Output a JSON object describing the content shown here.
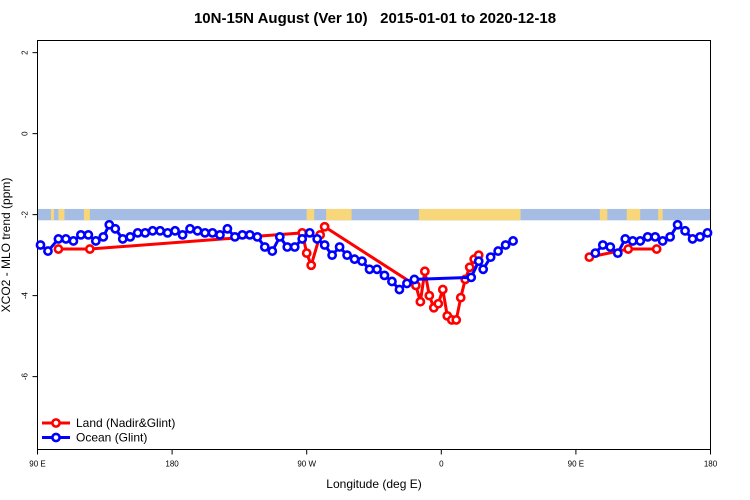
{
  "chart_data": {
    "type": "line",
    "title": "10N-15N August (Ver 10)   2015-01-01 to 2020-12-18",
    "xlabel": "Longitude (deg E)",
    "ylabel": "XCO2 - MLO trend (ppm)",
    "x_ticks": [
      {
        "value": 90,
        "label": "90 E"
      },
      {
        "value": 180,
        "label": "180"
      },
      {
        "value": 270,
        "label": "90 W"
      },
      {
        "value": 360,
        "label": "0"
      },
      {
        "value": 450,
        "label": "90 E"
      },
      {
        "value": 540,
        "label": "180"
      }
    ],
    "y_ticks": [
      {
        "value": 2,
        "label": "2"
      },
      {
        "value": 0,
        "label": "0"
      },
      {
        "value": -2,
        "label": "-2"
      },
      {
        "value": -4,
        "label": "-4"
      },
      {
        "value": -6,
        "label": "-6"
      }
    ],
    "xlim": [
      90,
      540
    ],
    "ylim": [
      -7.8,
      2.3
    ],
    "grid": false,
    "legend_position": "bottom-left",
    "land_band": {
      "y_range": [
        -2.14,
        -1.86
      ],
      "ocean_color": "#a5bde3",
      "land_color": "#f7d77a",
      "land_lon_ranges": [
        [
          99,
          101
        ],
        [
          104,
          108
        ],
        [
          121,
          125
        ],
        [
          270,
          275
        ],
        [
          283,
          300
        ],
        [
          345,
          413
        ],
        [
          466,
          471
        ],
        [
          484,
          493
        ],
        [
          505,
          508
        ]
      ]
    },
    "series": [
      {
        "name": "Land (Nadir&Glint)",
        "color": "#ff0000",
        "x": [
          104,
          125,
          267,
          270,
          273,
          279,
          282,
          343,
          346,
          349,
          352,
          355,
          358,
          361,
          364,
          367,
          370,
          373,
          376,
          379,
          382,
          385,
          388,
          391,
          393,
          396,
          459,
          485,
          504
        ],
        "y": [
          -2.85,
          -2.85,
          -2.45,
          -2.95,
          -3.25,
          -2.5,
          -2.3,
          -3.75,
          -4.15,
          -3.4,
          -4.0,
          -4.3,
          -4.2,
          -3.85,
          -4.5,
          -4.6,
          -4.6,
          -4.05,
          -3.6,
          -3.3,
          -3.1,
          -3.0,
          null,
          null,
          null,
          null,
          -3.05,
          -2.85,
          -2.85
        ],
        "segments_note": ""
      },
      {
        "name": "Ocean (Glint)",
        "color": "#0000ff",
        "x": [
          92,
          97,
          104,
          109,
          114,
          119,
          124,
          129,
          134,
          138,
          142,
          147,
          152,
          157,
          162,
          167,
          172,
          177,
          182,
          187,
          192,
          197,
          202,
          207,
          212,
          217,
          222,
          227,
          232,
          237,
          242,
          247,
          252,
          257,
          262,
          267,
          272,
          277,
          282,
          287,
          292,
          297,
          302,
          307,
          312,
          317,
          322,
          327,
          332,
          337,
          342,
          380,
          385,
          388,
          393,
          398,
          403,
          408,
          413,
          418,
          463,
          468,
          473,
          478,
          483,
          488,
          493,
          498,
          503,
          508,
          513,
          518,
          523,
          528,
          533,
          538
        ],
        "y": [
          -2.75,
          -2.9,
          -2.6,
          -2.6,
          -2.65,
          -2.5,
          -2.5,
          -2.65,
          -2.55,
          -2.25,
          -2.35,
          -2.6,
          -2.55,
          -2.45,
          -2.45,
          -2.4,
          -2.4,
          -2.45,
          -2.4,
          -2.5,
          -2.35,
          -2.4,
          -2.45,
          -2.45,
          -2.5,
          -2.35,
          -2.55,
          -2.5,
          -2.5,
          -2.55,
          -2.8,
          -2.9,
          -2.55,
          -2.8,
          -2.8,
          -2.6,
          -2.45,
          -2.6,
          -2.75,
          -3.0,
          -2.8,
          -3.0,
          -3.1,
          -3.15,
          -3.35,
          -3.35,
          -3.5,
          -3.65,
          -3.85,
          -3.7,
          -3.6,
          -3.55,
          -3.15,
          -3.35,
          -3.05,
          -2.9,
          -2.75,
          -2.65,
          null,
          null,
          -2.95,
          -2.75,
          -2.8,
          -2.95,
          -2.6,
          -2.65,
          -2.65,
          -2.55,
          -2.55,
          -2.65,
          -2.55,
          -2.25,
          -2.4,
          -2.6,
          -2.55,
          -2.45
        ]
      }
    ]
  }
}
